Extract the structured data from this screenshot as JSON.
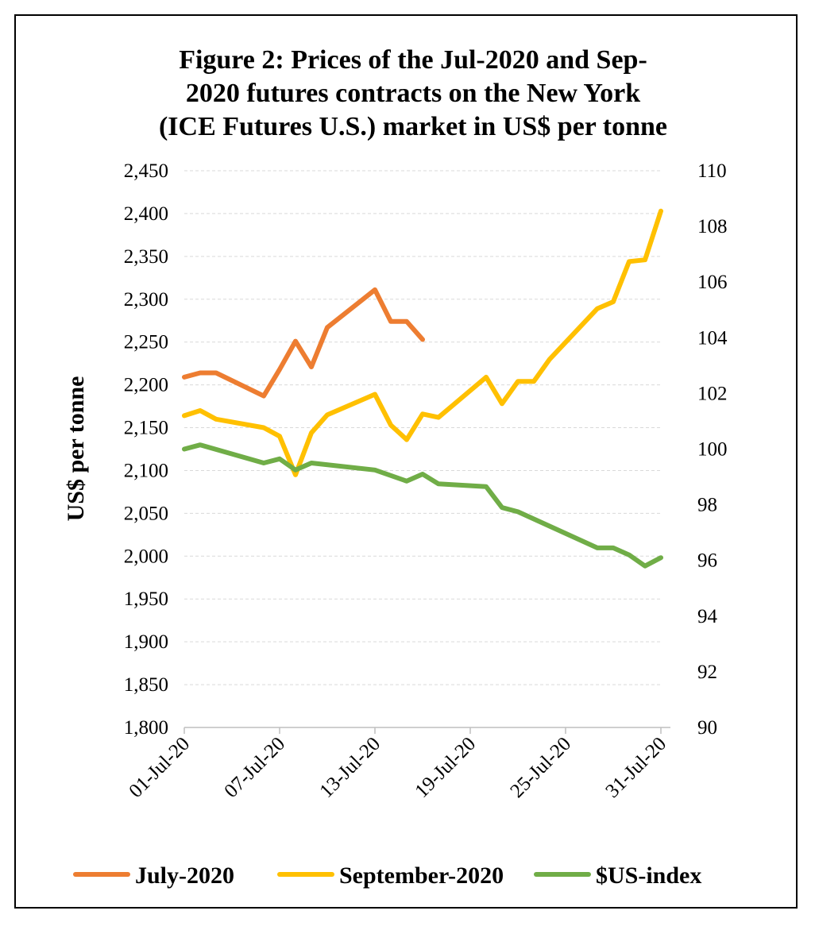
{
  "chart_data": {
    "type": "line",
    "title_lines": [
      "Figure 2: Prices of the Jul-2020 and Sep-",
      "2020 futures contracts on the New York",
      "(ICE Futures U.S.) market in US$ per tonne"
    ],
    "ylabel": "US$ per tonne",
    "ylim": [
      1800,
      2450
    ],
    "yticks": [
      "1,800",
      "1,850",
      "1,900",
      "1,950",
      "2,000",
      "2,050",
      "2,100",
      "2,150",
      "2,200",
      "2,250",
      "2,300",
      "2,350",
      "2,400",
      "2,450"
    ],
    "y2lim": [
      90,
      110
    ],
    "y2ticks": [
      "90",
      "92",
      "94",
      "96",
      "98",
      "100",
      "102",
      "104",
      "106",
      "108",
      "110"
    ],
    "xlim": [
      "2020-07-01",
      "2020-07-31"
    ],
    "xticks": [
      "01-Jul-20",
      "07-Jul-20",
      "13-Jul-20",
      "19-Jul-20",
      "25-Jul-20",
      "31-Jul-20"
    ],
    "grid": true,
    "legend_position": "bottom",
    "series": [
      {
        "name": "July-2020",
        "color": "#ed7d31",
        "axis": "left",
        "points": [
          [
            "2020-07-01",
            2209
          ],
          [
            "2020-07-02",
            2214
          ],
          [
            "2020-07-03",
            2214
          ],
          [
            "2020-07-06",
            2187
          ],
          [
            "2020-07-07",
            2218
          ],
          [
            "2020-07-08",
            2251
          ],
          [
            "2020-07-09",
            2221
          ],
          [
            "2020-07-10",
            2267
          ],
          [
            "2020-07-13",
            2311
          ],
          [
            "2020-07-14",
            2274
          ],
          [
            "2020-07-15",
            2274
          ],
          [
            "2020-07-16",
            2253
          ]
        ]
      },
      {
        "name": "September-2020",
        "color": "#ffc000",
        "axis": "left",
        "points": [
          [
            "2020-07-01",
            2164
          ],
          [
            "2020-07-02",
            2170
          ],
          [
            "2020-07-03",
            2160
          ],
          [
            "2020-07-06",
            2150
          ],
          [
            "2020-07-07",
            2140
          ],
          [
            "2020-07-08",
            2095
          ],
          [
            "2020-07-09",
            2144
          ],
          [
            "2020-07-10",
            2165
          ],
          [
            "2020-07-13",
            2189
          ],
          [
            "2020-07-14",
            2153
          ],
          [
            "2020-07-15",
            2136
          ],
          [
            "2020-07-16",
            2166
          ],
          [
            "2020-07-17",
            2162
          ],
          [
            "2020-07-20",
            2209
          ],
          [
            "2020-07-21",
            2178
          ],
          [
            "2020-07-22",
            2204
          ],
          [
            "2020-07-23",
            2204
          ],
          [
            "2020-07-24",
            2230
          ],
          [
            "2020-07-27",
            2289
          ],
          [
            "2020-07-28",
            2297
          ],
          [
            "2020-07-29",
            2344
          ],
          [
            "2020-07-30",
            2346
          ],
          [
            "2020-07-31",
            2403
          ]
        ]
      },
      {
        "name": "$US-index",
        "color": "#70ad47",
        "axis": "right",
        "points": [
          [
            "2020-07-01",
            100.0
          ],
          [
            "2020-07-02",
            100.15
          ],
          [
            "2020-07-06",
            99.5
          ],
          [
            "2020-07-07",
            99.65
          ],
          [
            "2020-07-08",
            99.25
          ],
          [
            "2020-07-09",
            99.5
          ],
          [
            "2020-07-13",
            99.25
          ],
          [
            "2020-07-15",
            98.85
          ],
          [
            "2020-07-16",
            99.1
          ],
          [
            "2020-07-17",
            98.75
          ],
          [
            "2020-07-20",
            98.65
          ],
          [
            "2020-07-21",
            97.9
          ],
          [
            "2020-07-22",
            97.75
          ],
          [
            "2020-07-27",
            96.45
          ],
          [
            "2020-07-28",
            96.45
          ],
          [
            "2020-07-29",
            96.2
          ],
          [
            "2020-07-30",
            95.8
          ],
          [
            "2020-07-31",
            96.1
          ]
        ]
      }
    ]
  }
}
